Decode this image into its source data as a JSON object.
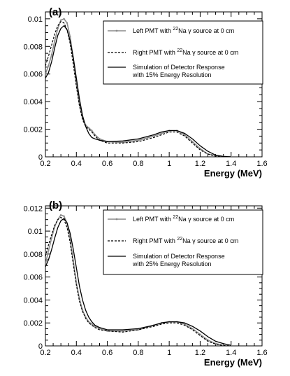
{
  "chart_data": [
    {
      "type": "line",
      "panel_label": "(a)",
      "xlabel": "Energy (MeV)",
      "ylabel": "",
      "xlim": [
        0.2,
        1.6
      ],
      "ylim": [
        0,
        0.0105
      ],
      "xticks": [
        0.2,
        0.4,
        0.6,
        0.8,
        1,
        1.2,
        1.4,
        1.6
      ],
      "xtick_labels": [
        "0.2",
        "0.4",
        "0.6",
        "0.8",
        "1",
        "1.2",
        "1.4",
        "1.6"
      ],
      "yticks": [
        0,
        0.002,
        0.004,
        0.006,
        0.008,
        0.01
      ],
      "ytick_labels": [
        "0",
        "0.002",
        "0.004",
        "0.006",
        "0.008",
        "0.01"
      ],
      "legend_placement": "top-right",
      "legend": [
        {
          "series": 0,
          "pre": "Left PMT with ",
          "sup": "22",
          "post": "Na γ source at 0 cm",
          "line2": ""
        },
        {
          "series": 1,
          "pre": "Right PMT with ",
          "sup": "22",
          "post": "Na γ source at 0 cm",
          "line2": ""
        },
        {
          "series": 2,
          "pre": "Simulation of Detector Response",
          "sup": "",
          "post": "",
          "line2": "with 15% Energy Resolution"
        }
      ],
      "series": [
        {
          "color": "#8a8a8a",
          "style": "solid",
          "markers": true,
          "x": [
            0.2,
            0.22,
            0.24,
            0.26,
            0.28,
            0.3,
            0.32,
            0.34,
            0.36,
            0.38,
            0.4,
            0.42,
            0.44,
            0.46,
            0.48,
            0.5,
            0.52,
            0.55,
            0.6,
            0.7,
            0.8,
            0.9,
            0.95,
            1.0,
            1.05,
            1.1,
            1.15,
            1.2,
            1.25,
            1.3,
            1.35,
            1.4
          ],
          "y": [
            0.006,
            0.0066,
            0.0074,
            0.0084,
            0.0093,
            0.0099,
            0.01,
            0.0097,
            0.0087,
            0.0071,
            0.0053,
            0.0038,
            0.0028,
            0.0023,
            0.0021,
            0.0019,
            0.0016,
            0.0013,
            0.0011,
            0.00105,
            0.0012,
            0.0015,
            0.0017,
            0.0019,
            0.0019,
            0.0016,
            0.0011,
            0.0006,
            0.0002,
            0.0001,
            3e-05,
            0
          ]
        },
        {
          "color": "#000000",
          "style": "dashed",
          "markers": false,
          "x": [
            0.2,
            0.22,
            0.24,
            0.26,
            0.28,
            0.3,
            0.32,
            0.34,
            0.36,
            0.38,
            0.4,
            0.42,
            0.44,
            0.46,
            0.48,
            0.5,
            0.52,
            0.55,
            0.6,
            0.7,
            0.8,
            0.9,
            0.95,
            1.0,
            1.05,
            1.1,
            1.15,
            1.2,
            1.25,
            1.3,
            1.35,
            1.4
          ],
          "y": [
            0.0066,
            0.0073,
            0.0081,
            0.0089,
            0.0095,
            0.0098,
            0.0097,
            0.0092,
            0.0082,
            0.0067,
            0.0051,
            0.0037,
            0.0027,
            0.0022,
            0.002,
            0.0018,
            0.0015,
            0.0012,
            0.001,
            0.001,
            0.0011,
            0.0014,
            0.0016,
            0.0018,
            0.0018,
            0.0015,
            0.001,
            0.0005,
            0.0002,
            5e-05,
            1e-05,
            0
          ]
        },
        {
          "color": "#000000",
          "style": "solid",
          "markers": false,
          "x": [
            0.2,
            0.22,
            0.24,
            0.26,
            0.28,
            0.3,
            0.32,
            0.34,
            0.36,
            0.38,
            0.4,
            0.42,
            0.44,
            0.46,
            0.48,
            0.5,
            0.52,
            0.55,
            0.6,
            0.7,
            0.8,
            0.9,
            0.95,
            1.0,
            1.05,
            1.1,
            1.15,
            1.2,
            1.25,
            1.3,
            1.35,
            1.4
          ],
          "y": [
            0.0057,
            0.0061,
            0.0069,
            0.0079,
            0.0088,
            0.0093,
            0.0095,
            0.0092,
            0.0084,
            0.0072,
            0.0057,
            0.0042,
            0.003,
            0.0022,
            0.0017,
            0.0014,
            0.0013,
            0.0012,
            0.0011,
            0.00115,
            0.0013,
            0.0016,
            0.0018,
            0.0019,
            0.0019,
            0.0017,
            0.0013,
            0.0008,
            0.0004,
            0.00012,
            3e-05,
            0
          ]
        }
      ]
    },
    {
      "type": "line",
      "panel_label": "(b)",
      "xlabel": "Energy (MeV)",
      "ylabel": "",
      "xlim": [
        0.2,
        1.6
      ],
      "ylim": [
        0,
        0.0122
      ],
      "xticks": [
        0.2,
        0.4,
        0.6,
        0.8,
        1,
        1.2,
        1.4,
        1.6
      ],
      "xtick_labels": [
        "0.2",
        "0.4",
        "0.6",
        "0.8",
        "1",
        "1.2",
        "1.4",
        "1.6"
      ],
      "yticks": [
        0,
        0.002,
        0.004,
        0.006,
        0.008,
        0.01,
        0.012
      ],
      "ytick_labels": [
        "0",
        "0.002",
        "0.004",
        "0.006",
        "0.008",
        "0.01",
        "0.012"
      ],
      "legend_placement": "top-right",
      "legend": [
        {
          "series": 0,
          "pre": "Left PMT with ",
          "sup": "22",
          "post": "Na γ source at 0 cm",
          "line2": ""
        },
        {
          "series": 1,
          "pre": "Right PMT with ",
          "sup": "22",
          "post": "Na γ source at 0 cm",
          "line2": ""
        },
        {
          "series": 2,
          "pre": "Simulation of Detector Response",
          "sup": "",
          "post": "",
          "line2": " with 25% Energy Resolution"
        }
      ],
      "series": [
        {
          "color": "#8a8a8a",
          "style": "solid",
          "markers": true,
          "x": [
            0.2,
            0.22,
            0.24,
            0.26,
            0.28,
            0.3,
            0.32,
            0.34,
            0.36,
            0.38,
            0.4,
            0.42,
            0.44,
            0.46,
            0.48,
            0.5,
            0.52,
            0.55,
            0.6,
            0.7,
            0.8,
            0.9,
            0.95,
            1.0,
            1.05,
            1.1,
            1.15,
            1.2,
            1.25,
            1.3,
            1.35,
            1.4
          ],
          "y": [
            0.0071,
            0.0083,
            0.0094,
            0.0104,
            0.011,
            0.0114,
            0.0113,
            0.0107,
            0.0093,
            0.0074,
            0.0055,
            0.0041,
            0.0031,
            0.0025,
            0.0021,
            0.0019,
            0.0017,
            0.0015,
            0.0013,
            0.0013,
            0.0014,
            0.0018,
            0.002,
            0.0021,
            0.0021,
            0.0019,
            0.0015,
            0.001,
            0.0005,
            0.0002,
            5e-05,
            0
          ]
        },
        {
          "color": "#000000",
          "style": "dashed",
          "markers": false,
          "x": [
            0.2,
            0.22,
            0.24,
            0.26,
            0.28,
            0.3,
            0.32,
            0.34,
            0.36,
            0.38,
            0.4,
            0.42,
            0.44,
            0.46,
            0.48,
            0.5,
            0.52,
            0.55,
            0.6,
            0.7,
            0.8,
            0.9,
            0.95,
            1.0,
            1.05,
            1.1,
            1.15,
            1.2,
            1.25,
            1.3,
            1.35,
            1.4
          ],
          "y": [
            0.0078,
            0.0088,
            0.0097,
            0.0105,
            0.011,
            0.0112,
            0.011,
            0.0103,
            0.009,
            0.0071,
            0.0053,
            0.0039,
            0.003,
            0.0024,
            0.002,
            0.0018,
            0.0016,
            0.0014,
            0.0013,
            0.0012,
            0.0014,
            0.0017,
            0.0019,
            0.002,
            0.002,
            0.0018,
            0.0014,
            0.0009,
            0.0004,
            0.00015,
            3e-05,
            0
          ]
        },
        {
          "color": "#000000",
          "style": "solid",
          "markers": false,
          "x": [
            0.2,
            0.22,
            0.24,
            0.26,
            0.28,
            0.3,
            0.32,
            0.34,
            0.36,
            0.38,
            0.4,
            0.42,
            0.44,
            0.46,
            0.48,
            0.5,
            0.52,
            0.55,
            0.6,
            0.7,
            0.8,
            0.9,
            0.95,
            1.0,
            1.05,
            1.1,
            1.15,
            1.2,
            1.25,
            1.3,
            1.35,
            1.4
          ],
          "y": [
            0.0069,
            0.0075,
            0.0084,
            0.0094,
            0.0103,
            0.0109,
            0.0111,
            0.0107,
            0.0098,
            0.0084,
            0.0068,
            0.0052,
            0.004,
            0.0031,
            0.0025,
            0.0021,
            0.0018,
            0.0016,
            0.0014,
            0.0014,
            0.0015,
            0.0018,
            0.002,
            0.0021,
            0.0021,
            0.002,
            0.0017,
            0.0013,
            0.0008,
            0.0004,
            0.0002,
            5e-05
          ]
        }
      ]
    }
  ]
}
